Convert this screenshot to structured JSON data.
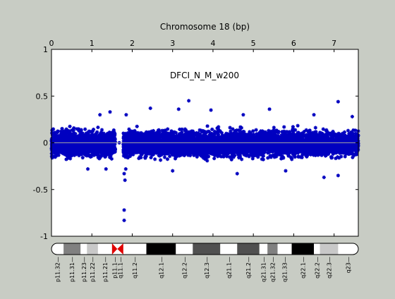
{
  "chart_data": {
    "type": "scatter",
    "title": "DFCI_N_M_w200",
    "xlabel": "Chromosome 18 (bp)",
    "ylabel": "",
    "xlim": [
      0,
      7.6
    ],
    "ylim": [
      -1,
      1
    ],
    "x_ticks": [
      0,
      1,
      2,
      3,
      4,
      5,
      6,
      7
    ],
    "x_tick_labels": [
      "0",
      "1",
      "2",
      "3",
      "4",
      "5",
      "6",
      "7"
    ],
    "y_ticks": [
      -1,
      -0.5,
      0,
      0.5,
      1
    ],
    "y_tick_labels": [
      "-1",
      "-0.5",
      "0",
      "0.5",
      "1"
    ],
    "x_axis_position": "top",
    "grid": false,
    "reference_line_y": 0,
    "series": [
      {
        "color": "#0000c0",
        "marker": "asterisk",
        "segments": [
          {
            "x_start": 0.0,
            "x_end": 1.58,
            "band": [
              -0.2,
              0.18
            ]
          },
          {
            "x_start": 1.78,
            "x_end": 7.6,
            "band": [
              -0.2,
              0.18
            ]
          }
        ],
        "outliers": [
          {
            "x": 1.8,
            "y": -0.72
          },
          {
            "x": 1.8,
            "y": -0.83
          },
          {
            "x": 1.82,
            "y": -0.4
          },
          {
            "x": 1.8,
            "y": -0.33
          },
          {
            "x": 1.84,
            "y": -0.28
          },
          {
            "x": 1.68,
            "y": 0.0
          },
          {
            "x": 1.85,
            "y": 0.3
          },
          {
            "x": 2.45,
            "y": 0.37
          },
          {
            "x": 3.15,
            "y": 0.36
          },
          {
            "x": 3.4,
            "y": 0.45
          },
          {
            "x": 3.95,
            "y": 0.35
          },
          {
            "x": 1.45,
            "y": 0.33
          },
          {
            "x": 4.75,
            "y": 0.3
          },
          {
            "x": 5.4,
            "y": 0.36
          },
          {
            "x": 7.1,
            "y": 0.44
          },
          {
            "x": 6.5,
            "y": 0.3
          },
          {
            "x": 7.45,
            "y": 0.28
          },
          {
            "x": 1.2,
            "y": 0.3
          },
          {
            "x": 6.75,
            "y": -0.37
          },
          {
            "x": 4.6,
            "y": -0.33
          },
          {
            "x": 7.1,
            "y": -0.35
          },
          {
            "x": 3.0,
            "y": -0.3
          },
          {
            "x": 5.8,
            "y": -0.3
          },
          {
            "x": 0.9,
            "y": -0.28
          },
          {
            "x": 1.35,
            "y": -0.28
          }
        ]
      }
    ]
  },
  "ideogram": {
    "bands": [
      {
        "name": "p11.32",
        "start": 0.0,
        "end": 0.3,
        "stain": "gneg"
      },
      {
        "name": "p11.31",
        "start": 0.3,
        "end": 0.72,
        "stain": "gpos50"
      },
      {
        "name": "p11.23",
        "start": 0.72,
        "end": 0.88,
        "stain": "gneg"
      },
      {
        "name": "p11.22",
        "start": 0.88,
        "end": 1.15,
        "stain": "gpos25"
      },
      {
        "name": "p11.21",
        "start": 1.15,
        "end": 1.5,
        "stain": "gneg"
      },
      {
        "name": "p11.1",
        "start": 1.5,
        "end": 1.63,
        "stain": "acen"
      },
      {
        "name": "q11.1",
        "start": 1.63,
        "end": 1.78,
        "stain": "acen"
      },
      {
        "name": "q11.2",
        "start": 1.78,
        "end": 2.35,
        "stain": "gneg"
      },
      {
        "name": "q12.1",
        "start": 2.35,
        "end": 3.08,
        "stain": "gpos100"
      },
      {
        "name": "q12.2",
        "start": 3.08,
        "end": 3.5,
        "stain": "gneg"
      },
      {
        "name": "q12.3",
        "start": 3.5,
        "end": 4.18,
        "stain": "gpos75"
      },
      {
        "name": "q21.1",
        "start": 4.18,
        "end": 4.6,
        "stain": "gneg"
      },
      {
        "name": "q21.2",
        "start": 4.6,
        "end": 5.15,
        "stain": "gpos75"
      },
      {
        "name": "q21.31",
        "start": 5.15,
        "end": 5.35,
        "stain": "gneg"
      },
      {
        "name": "q21.32",
        "start": 5.35,
        "end": 5.6,
        "stain": "gpos50"
      },
      {
        "name": "q21.33",
        "start": 5.6,
        "end": 5.95,
        "stain": "gneg"
      },
      {
        "name": "q22.1",
        "start": 5.95,
        "end": 6.5,
        "stain": "gpos100"
      },
      {
        "name": "q22.2",
        "start": 6.5,
        "end": 6.65,
        "stain": "gneg"
      },
      {
        "name": "q22.3",
        "start": 6.65,
        "end": 7.1,
        "stain": "gpos25"
      },
      {
        "name": "q23",
        "start": 7.1,
        "end": 7.6,
        "stain": "gneg"
      }
    ]
  },
  "colors": {
    "background": "#c8ccc4",
    "axes_bg": "#ffffff",
    "points": "#0000c0",
    "zero_line": "#a0a0a0",
    "gneg": "#ffffff",
    "gpos25": "#c8c8c8",
    "gpos50": "#808080",
    "gpos75": "#505050",
    "gpos100": "#000000",
    "acen": "#e00000"
  }
}
